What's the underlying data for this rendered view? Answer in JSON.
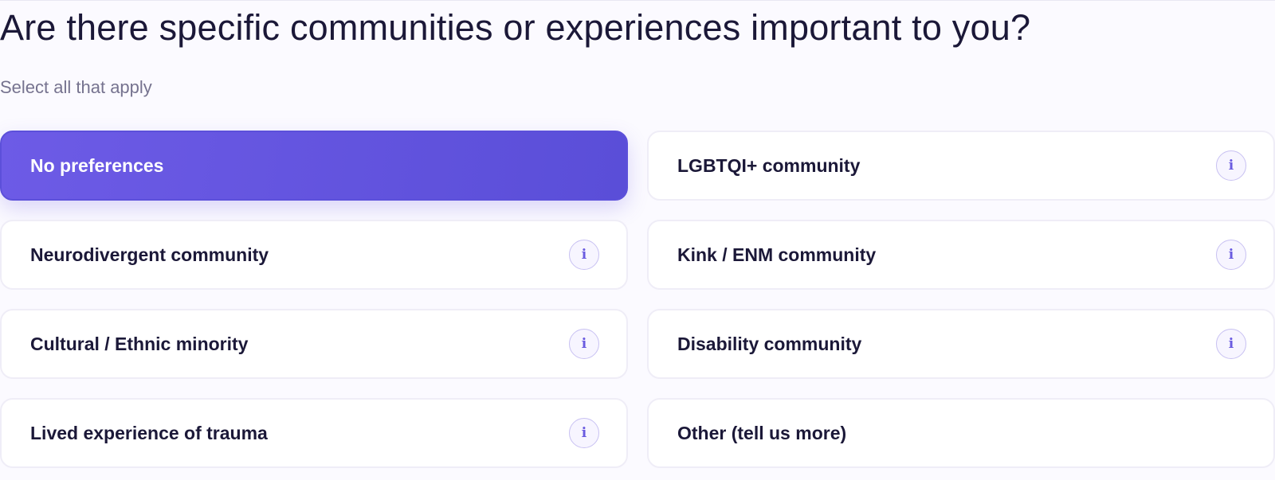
{
  "question": {
    "title": "Are there specific communities or experiences important to you?",
    "subtitle": "Select all that apply"
  },
  "options": [
    {
      "label": "No preferences",
      "selected": true,
      "has_info": false
    },
    {
      "label": "LGBTQI+ community",
      "selected": false,
      "has_info": true,
      "info_glyph": "i"
    },
    {
      "label": "Neurodivergent community",
      "selected": false,
      "has_info": true,
      "info_glyph": "i"
    },
    {
      "label": "Kink / ENM community",
      "selected": false,
      "has_info": true,
      "info_glyph": "i"
    },
    {
      "label": "Cultural / Ethnic minority",
      "selected": false,
      "has_info": true,
      "info_glyph": "i"
    },
    {
      "label": "Disability community",
      "selected": false,
      "has_info": true,
      "info_glyph": "i"
    },
    {
      "label": "Lived experience of trauma",
      "selected": false,
      "has_info": true,
      "info_glyph": "i"
    },
    {
      "label": "Other (tell us more)",
      "selected": false,
      "has_info": false
    }
  ],
  "colors": {
    "accent": "#6356e0",
    "title_text": "#1b1838",
    "subtitle_text": "#76738f",
    "card_border": "#efedf7",
    "info_border": "#c8c1f2"
  },
  "icons": {
    "info": "info-icon"
  }
}
